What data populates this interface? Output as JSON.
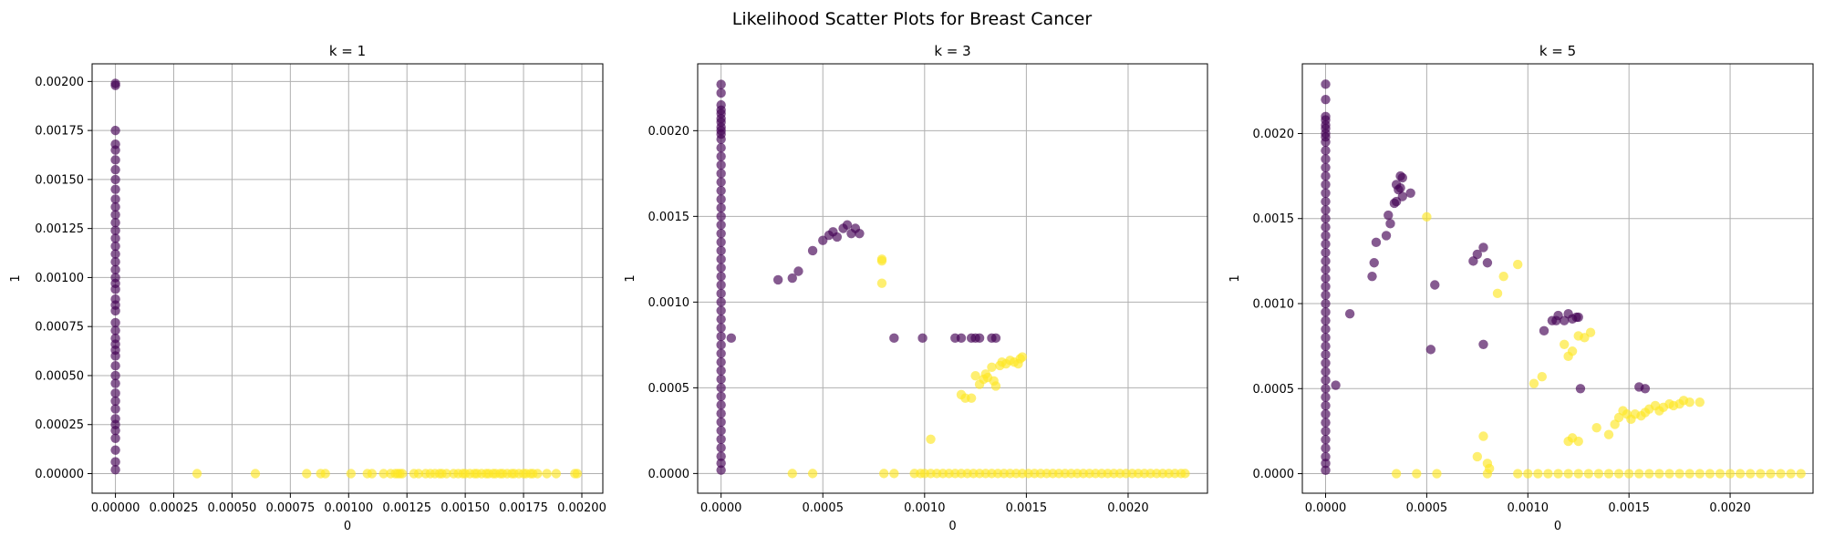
{
  "figure": {
    "title": "Likelihood Scatter Plots for Breast Cancer"
  },
  "colors": {
    "class_0": "#440154",
    "class_1": "#fde725",
    "grid": "#b0b0b0",
    "axes": "#000000"
  },
  "chart_data": [
    {
      "type": "scatter",
      "title": "k = 1",
      "xlabel": "0",
      "ylabel": "1",
      "xlim": [
        -0.0001,
        0.00209
      ],
      "ylim": [
        -0.0001,
        0.00209
      ],
      "xticks": [
        0.0,
        0.00025,
        0.0005,
        0.00075,
        0.001,
        0.00125,
        0.0015,
        0.00175,
        0.002
      ],
      "xtick_labels": [
        "0.00000",
        "0.00025",
        "0.00050",
        "0.00075",
        "0.00100",
        "0.00125",
        "0.00150",
        "0.00175",
        "0.00200"
      ],
      "yticks": [
        0.0,
        0.00025,
        0.0005,
        0.00075,
        0.001,
        0.00125,
        0.0015,
        0.00175,
        0.002
      ],
      "ytick_labels": [
        "0.00000",
        "0.00025",
        "0.00050",
        "0.00075",
        "0.00100",
        "0.00125",
        "0.00150",
        "0.00175",
        "0.00200"
      ],
      "grid": true,
      "series": [
        {
          "x": [
            0,
            0,
            0,
            0,
            0,
            0,
            0,
            0,
            0,
            0,
            0,
            0,
            0,
            0,
            0,
            0,
            0,
            0,
            0,
            0,
            0,
            0,
            0,
            0,
            0,
            0,
            0,
            0,
            0,
            0,
            0,
            0,
            0,
            0,
            0,
            0,
            0,
            0,
            0,
            0,
            0,
            0,
            0,
            0
          ],
          "y": [
            2e-05,
            6e-05,
            0.00012,
            0.00018,
            0.00022,
            0.00025,
            0.00028,
            0.00033,
            0.00037,
            0.00041,
            0.00046,
            0.0005,
            0.00055,
            0.0006,
            0.00063,
            0.00066,
            0.00069,
            0.00073,
            0.00077,
            0.00083,
            0.00086,
            0.00089,
            0.00094,
            0.00097,
            0.001,
            0.00104,
            0.00108,
            0.00112,
            0.00116,
            0.0012,
            0.00124,
            0.00128,
            0.00132,
            0.00136,
            0.0014,
            0.00145,
            0.0015,
            0.00155,
            0.0016,
            0.00165,
            0.00168,
            0.00175,
            0.00198,
            0.00199
          ]
        },
        {
          "x": [
            0.00035,
            0.0006,
            0.00082,
            0.00088,
            0.0009,
            0.00101,
            0.00108,
            0.0011,
            0.00115,
            0.00118,
            0.0012,
            0.00121,
            0.00122,
            0.00123,
            0.00128,
            0.0013,
            0.00133,
            0.00135,
            0.00137,
            0.00139,
            0.0014,
            0.00142,
            0.00145,
            0.00147,
            0.00149,
            0.0015,
            0.00152,
            0.00154,
            0.00155,
            0.00157,
            0.00159,
            0.0016,
            0.00162,
            0.00163,
            0.00165,
            0.00166,
            0.00168,
            0.0017,
            0.00171,
            0.00173,
            0.00175,
            0.00176,
            0.00178,
            0.00179,
            0.00181,
            0.00185,
            0.00189,
            0.00197,
            0.00198
          ],
          "y": [
            0,
            0,
            0,
            0,
            0,
            0,
            0,
            0,
            0,
            0,
            0,
            0,
            0,
            0,
            0,
            0,
            0,
            0,
            0,
            0,
            0,
            0,
            0,
            0,
            0,
            0,
            0,
            0,
            0,
            0,
            0,
            0,
            0,
            0,
            0,
            0,
            0,
            0,
            0,
            0,
            0,
            0,
            0,
            0,
            0,
            0,
            0,
            0,
            0
          ]
        }
      ]
    },
    {
      "type": "scatter",
      "title": "k = 3",
      "xlabel": "0",
      "ylabel": "1",
      "xlim": [
        -0.000115,
        0.00239
      ],
      "ylim": [
        -0.000115,
        0.00239
      ],
      "xticks": [
        0.0,
        0.0005,
        0.001,
        0.0015,
        0.002
      ],
      "xtick_labels": [
        "0.0000",
        "0.0005",
        "0.0010",
        "0.0015",
        "0.0020"
      ],
      "yticks": [
        0.0,
        0.0005,
        0.001,
        0.0015,
        0.002
      ],
      "ytick_labels": [
        "0.0000",
        "0.0005",
        "0.0010",
        "0.0015",
        "0.0020"
      ],
      "grid": true,
      "series": [
        {
          "x": [
            0,
            0,
            0,
            0,
            0,
            0,
            0,
            0,
            0,
            0,
            0,
            0,
            0,
            0,
            0,
            0,
            0,
            0,
            0,
            0,
            0,
            0,
            0,
            0,
            0,
            0,
            0,
            0,
            0,
            0,
            0,
            0,
            0,
            0,
            0,
            0,
            0,
            0,
            0,
            0,
            0,
            0,
            0,
            0,
            0,
            0,
            0,
            0,
            0,
            0,
            5e-05,
            0.00028,
            0.00035,
            0.00038,
            0.00045,
            0.0005,
            0.00053,
            0.00055,
            0.00057,
            0.0006,
            0.00062,
            0.00064,
            0.00066,
            0.00068,
            0.00085,
            0.00099,
            0.00115,
            0.00118,
            0.00123,
            0.00125,
            0.00127,
            0.00133,
            0.00135
          ],
          "y": [
            2e-05,
            6e-05,
            0.0001,
            0.00015,
            0.0002,
            0.00025,
            0.0003,
            0.00035,
            0.0004,
            0.00045,
            0.0005,
            0.00055,
            0.0006,
            0.00065,
            0.0007,
            0.00075,
            0.0008,
            0.00085,
            0.0009,
            0.00095,
            0.001,
            0.00105,
            0.0011,
            0.00115,
            0.0012,
            0.00125,
            0.0013,
            0.00135,
            0.0014,
            0.00145,
            0.0015,
            0.00155,
            0.0016,
            0.00165,
            0.0017,
            0.00175,
            0.0018,
            0.00185,
            0.0019,
            0.00195,
            0.00198,
            0.002,
            0.00202,
            0.00205,
            0.00207,
            0.0021,
            0.00212,
            0.00215,
            0.00222,
            0.00227,
            0.00079,
            0.00113,
            0.00114,
            0.00118,
            0.0013,
            0.00136,
            0.00139,
            0.00141,
            0.00138,
            0.00143,
            0.00145,
            0.0014,
            0.00143,
            0.0014,
            0.00079,
            0.00079,
            0.00079,
            0.00079,
            0.00079,
            0.00079,
            0.00079,
            0.00079,
            0.00079
          ]
        },
        {
          "x": [
            0.00079,
            0.00079,
            0.00079,
            0.00103,
            0.00118,
            0.0012,
            0.00123,
            0.00125,
            0.00127,
            0.00129,
            0.0013,
            0.00131,
            0.00133,
            0.00134,
            0.00135,
            0.00137,
            0.00138,
            0.0014,
            0.00142,
            0.00144,
            0.00146,
            0.00147,
            0.00148,
            0.00035,
            0.00045,
            0.0008,
            0.00085,
            0.00095,
            0.00098,
            0.001,
            0.00103,
            0.00106,
            0.00109,
            0.00112,
            0.00115,
            0.00118,
            0.00121,
            0.00124,
            0.00127,
            0.0013,
            0.00133,
            0.00136,
            0.00139,
            0.00142,
            0.00145,
            0.00148,
            0.00151,
            0.00154,
            0.00157,
            0.0016,
            0.00163,
            0.00166,
            0.00169,
            0.00172,
            0.00175,
            0.00178,
            0.00181,
            0.00184,
            0.00187,
            0.0019,
            0.00193,
            0.00196,
            0.00199,
            0.00202,
            0.00205,
            0.00208,
            0.00211,
            0.00214,
            0.00217,
            0.0022,
            0.00223,
            0.00226,
            0.00228
          ],
          "y": [
            0.00125,
            0.00124,
            0.00111,
            0.0002,
            0.00046,
            0.00044,
            0.00044,
            0.00057,
            0.00052,
            0.00055,
            0.00058,
            0.00056,
            0.00062,
            0.00054,
            0.00051,
            0.00063,
            0.00065,
            0.00064,
            0.00066,
            0.00065,
            0.00064,
            0.00067,
            0.00068,
            0,
            0,
            0,
            0,
            0,
            0,
            0,
            0,
            0,
            0,
            0,
            0,
            0,
            0,
            0,
            0,
            0,
            0,
            0,
            0,
            0,
            0,
            0,
            0,
            0,
            0,
            0,
            0,
            0,
            0,
            0,
            0,
            0,
            0,
            0,
            0,
            0,
            0,
            0,
            0,
            0,
            0,
            0,
            0,
            0,
            0,
            0,
            0,
            0,
            0
          ]
        }
      ]
    },
    {
      "type": "scatter",
      "title": "k = 5",
      "xlabel": "0",
      "ylabel": "1",
      "xlim": [
        -0.000115,
        0.00241
      ],
      "ylim": [
        -0.000115,
        0.00241
      ],
      "xticks": [
        0.0,
        0.0005,
        0.001,
        0.0015,
        0.002
      ],
      "xtick_labels": [
        "0.0000",
        "0.0005",
        "0.0010",
        "0.0015",
        "0.0020"
      ],
      "yticks": [
        0.0,
        0.0005,
        0.001,
        0.0015,
        0.002
      ],
      "ytick_labels": [
        "0.0000",
        "0.0005",
        "0.0010",
        "0.0015",
        "0.0020"
      ],
      "grid": true,
      "series": [
        {
          "x": [
            0,
            0,
            0,
            0,
            0,
            0,
            0,
            0,
            0,
            0,
            0,
            0,
            0,
            0,
            0,
            0,
            0,
            0,
            0,
            0,
            0,
            0,
            0,
            0,
            0,
            0,
            0,
            0,
            0,
            0,
            0,
            0,
            0,
            0,
            0,
            0,
            0,
            0,
            0,
            0,
            0,
            0,
            0,
            0,
            0,
            0,
            0,
            0,
            5e-05,
            0.00012,
            0.00023,
            0.00024,
            0.00025,
            0.0003,
            0.00031,
            0.00032,
            0.00034,
            0.00035,
            0.00035,
            0.00036,
            0.00037,
            0.00037,
            0.00038,
            0.00038,
            0.00042,
            0.00054,
            0.00052,
            0.00073,
            0.00075,
            0.00078,
            0.00078,
            0.0008,
            0.00108,
            0.00112,
            0.00114,
            0.00115,
            0.00118,
            0.0012,
            0.00122,
            0.00124,
            0.00125,
            0.00126,
            0.00155,
            0.00158
          ],
          "y": [
            2e-05,
            6e-05,
            0.0001,
            0.00015,
            0.0002,
            0.00025,
            0.0003,
            0.00035,
            0.0004,
            0.00045,
            0.0005,
            0.00055,
            0.0006,
            0.00065,
            0.0007,
            0.00075,
            0.0008,
            0.00085,
            0.0009,
            0.00095,
            0.001,
            0.00105,
            0.0011,
            0.00115,
            0.0012,
            0.00125,
            0.0013,
            0.00135,
            0.0014,
            0.00145,
            0.0015,
            0.00155,
            0.0016,
            0.00165,
            0.0017,
            0.00175,
            0.0018,
            0.00185,
            0.0019,
            0.00195,
            0.00198,
            0.002,
            0.00203,
            0.00205,
            0.00208,
            0.0021,
            0.0022,
            0.00229,
            0.00052,
            0.00094,
            0.00116,
            0.00124,
            0.00136,
            0.0014,
            0.00152,
            0.00147,
            0.00159,
            0.0016,
            0.0017,
            0.00167,
            0.00175,
            0.00168,
            0.00174,
            0.00163,
            0.00165,
            0.00111,
            0.00073,
            0.00125,
            0.00129,
            0.00133,
            0.00076,
            0.00124,
            0.00084,
            0.0009,
            0.0009,
            0.00093,
            0.0009,
            0.00094,
            0.00091,
            0.00092,
            0.00092,
            0.0005,
            0.00051,
            0.0005
          ]
        },
        {
          "x": [
            0.0005,
            0.00085,
            0.00088,
            0.00095,
            0.00103,
            0.00107,
            0.00118,
            0.0012,
            0.00122,
            0.00125,
            0.00128,
            0.00131,
            0.00134,
            0.0014,
            0.00143,
            0.00145,
            0.00147,
            0.00149,
            0.00151,
            0.00153,
            0.00156,
            0.00158,
            0.0016,
            0.00163,
            0.00165,
            0.00167,
            0.0017,
            0.00172,
            0.00175,
            0.00177,
            0.0018,
            0.00185,
            0.00075,
            0.00078,
            0.0008,
            0.00081,
            0.0012,
            0.00122,
            0.00125,
            0.00035,
            0.00045,
            0.00055,
            0.0008,
            0.00095,
            0.001,
            0.00105,
            0.0011,
            0.00115,
            0.0012,
            0.00125,
            0.0013,
            0.00135,
            0.0014,
            0.00145,
            0.0015,
            0.00155,
            0.0016,
            0.00165,
            0.0017,
            0.00175,
            0.0018,
            0.00185,
            0.0019,
            0.00195,
            0.002,
            0.00205,
            0.0021,
            0.00215,
            0.0022,
            0.00225,
            0.0023,
            0.00235
          ],
          "y": [
            0.00151,
            0.00106,
            0.00116,
            0.00123,
            0.00053,
            0.00057,
            0.00076,
            0.00069,
            0.00072,
            0.00081,
            0.0008,
            0.00083,
            0.00027,
            0.00023,
            0.00029,
            0.00033,
            0.00037,
            0.00035,
            0.00032,
            0.00035,
            0.00034,
            0.00036,
            0.00038,
            0.0004,
            0.00037,
            0.00039,
            0.00041,
            0.0004,
            0.00041,
            0.00043,
            0.00042,
            0.00042,
            0.0001,
            0.00022,
            6e-05,
            3e-05,
            0.00019,
            0.00021,
            0.00019,
            0,
            0,
            0,
            0,
            0,
            0,
            0,
            0,
            0,
            0,
            0,
            0,
            0,
            0,
            0,
            0,
            0,
            0,
            0,
            0,
            0,
            0,
            0,
            0,
            0,
            0,
            0,
            0,
            0,
            0,
            0,
            0,
            0
          ]
        }
      ]
    }
  ]
}
